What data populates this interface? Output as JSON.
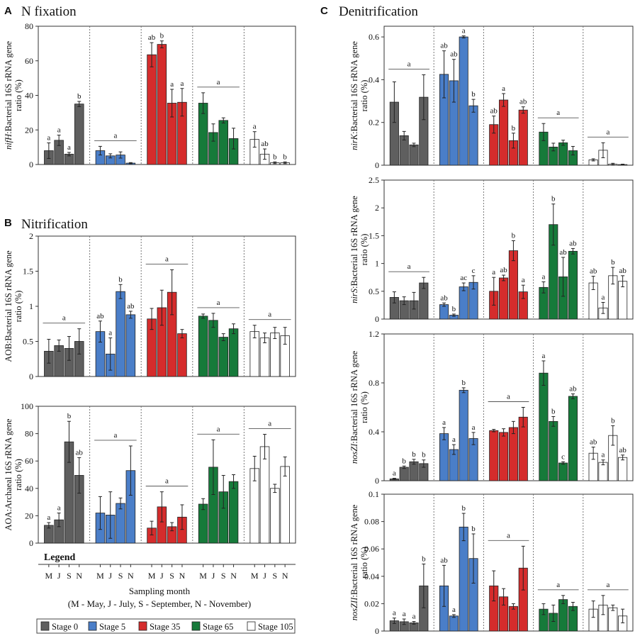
{
  "panels": {
    "A": {
      "letter": "A",
      "title": "N fixation"
    },
    "B": {
      "letter": "B",
      "title": "Nitrification"
    },
    "C": {
      "letter": "C",
      "title": "Denitrification"
    }
  },
  "legend": {
    "title": "Legend",
    "months": [
      "M",
      "J",
      "S",
      "N"
    ],
    "xlabel": "Sampling month",
    "caption": "(M - May, J - July, S - September, N - November)",
    "stages": [
      {
        "name": "Stage 0",
        "color": "#5f5f5f"
      },
      {
        "name": "Stage 5",
        "color": "#4a7ec8"
      },
      {
        "name": "Stage 35",
        "color": "#d52c2c"
      },
      {
        "name": "Stage 65",
        "color": "#167a3a"
      },
      {
        "name": "Stage 105",
        "color": "#ffffff"
      }
    ]
  },
  "chart_data": [
    {
      "id": "nifH",
      "type": "bar",
      "panel": "A",
      "ylabel_italic": "nifH",
      "ylabel_rest": ":Bacterial 16S rRNA gene",
      "ylabel_line2": "ratio (%)",
      "ylim": [
        0,
        80
      ],
      "yticks": [
        "0",
        "20",
        "40",
        "60",
        "80"
      ],
      "series": [
        {
          "name": "Stage 0",
          "values": [
            8,
            14,
            6,
            35
          ],
          "errors": [
            4.5,
            3,
            1,
            1.5
          ],
          "letters": [
            "a",
            "a",
            "a",
            "b"
          ],
          "group_letter": ""
        },
        {
          "name": "Stage 5",
          "values": [
            8,
            5,
            5.5,
            0.8
          ],
          "errors": [
            2.5,
            1.2,
            1.8,
            0.3
          ],
          "letters": [
            "",
            "",
            "",
            ""
          ],
          "group_letter": "a"
        },
        {
          "name": "Stage 35",
          "values": [
            63.5,
            69.5,
            35.5,
            36
          ],
          "errors": [
            7,
            2,
            8,
            8
          ],
          "letters": [
            "ab",
            "b",
            "a",
            "a"
          ],
          "group_letter": ""
        },
        {
          "name": "Stage 65",
          "values": [
            35.5,
            18.5,
            25.5,
            15
          ],
          "errors": [
            6,
            5,
            1.5,
            6
          ],
          "letters": [
            "",
            "",
            "",
            ""
          ],
          "group_letter": "a"
        },
        {
          "name": "Stage 105",
          "values": [
            14.5,
            6,
            1,
            1
          ],
          "errors": [
            4.5,
            3,
            0.5,
            0.5
          ],
          "letters": [
            "a",
            "ab",
            "b",
            "b"
          ],
          "group_letter": ""
        }
      ]
    },
    {
      "id": "AOB",
      "type": "bar",
      "panel": "B",
      "ylabel_italic": "",
      "ylabel_rest": "AOB:Bacterial 16S rRNA gene",
      "ylabel_line2": "ratio (%)",
      "ylim": [
        0,
        2
      ],
      "yticks": [
        "0",
        "0.5",
        "1",
        "1.5",
        "2"
      ],
      "series": [
        {
          "name": "Stage 0",
          "values": [
            0.36,
            0.44,
            0.4,
            0.5
          ],
          "errors": [
            0.17,
            0.08,
            0.17,
            0.18
          ],
          "letters": [
            "",
            "",
            "",
            ""
          ],
          "group_letter": "a"
        },
        {
          "name": "Stage 5",
          "values": [
            0.64,
            0.32,
            1.21,
            0.88
          ],
          "errors": [
            0.15,
            0.23,
            0.1,
            0.05
          ],
          "letters": [
            "ab",
            "a",
            "b",
            "ab"
          ],
          "group_letter": ""
        },
        {
          "name": "Stage 35",
          "values": [
            0.82,
            0.98,
            1.2,
            0.61
          ],
          "errors": [
            0.15,
            0.25,
            0.32,
            0.06
          ],
          "letters": [
            "",
            "",
            "",
            ""
          ],
          "group_letter": "a"
        },
        {
          "name": "Stage 65",
          "values": [
            0.86,
            0.8,
            0.56,
            0.68
          ],
          "errors": [
            0.03,
            0.1,
            0.05,
            0.07
          ],
          "letters": [
            "",
            "",
            "",
            ""
          ],
          "group_letter": "a"
        },
        {
          "name": "Stage 105",
          "values": [
            0.64,
            0.55,
            0.62,
            0.58
          ],
          "errors": [
            0.09,
            0.07,
            0.08,
            0.12
          ],
          "letters": [
            "",
            "",
            "",
            ""
          ],
          "group_letter": "a"
        }
      ]
    },
    {
      "id": "AOA",
      "type": "bar",
      "panel": "B",
      "ylabel_italic": "",
      "ylabel_rest": "AOA:Archaeal 16S rRNA gene",
      "ylabel_line2": "ratio (%)",
      "ylim": [
        0,
        100
      ],
      "yticks": [
        "0",
        "20",
        "40",
        "60",
        "80",
        "100"
      ],
      "series": [
        {
          "name": "Stage 0",
          "values": [
            13,
            17,
            74,
            49.5
          ],
          "errors": [
            2,
            5,
            15,
            13
          ],
          "letters": [
            "a",
            "a",
            "b",
            "ab"
          ],
          "group_letter": ""
        },
        {
          "name": "Stage 5",
          "values": [
            22,
            20.5,
            29,
            53
          ],
          "errors": [
            12,
            17,
            4,
            18
          ],
          "letters": [
            "",
            "",
            "",
            ""
          ],
          "group_letter": "a"
        },
        {
          "name": "Stage 35",
          "values": [
            11,
            26.5,
            12,
            19
          ],
          "errors": [
            5,
            11,
            3,
            9
          ],
          "letters": [
            "",
            "",
            "",
            ""
          ],
          "group_letter": "a"
        },
        {
          "name": "Stage 65",
          "values": [
            28.5,
            55.5,
            37.5,
            45
          ],
          "errors": [
            4,
            20,
            12,
            5
          ],
          "letters": [
            "",
            "",
            "",
            ""
          ],
          "group_letter": "a"
        },
        {
          "name": "Stage 105",
          "values": [
            54.5,
            70.5,
            40,
            56
          ],
          "errors": [
            9,
            9,
            3,
            7
          ],
          "letters": [
            "",
            "",
            "",
            ""
          ],
          "group_letter": "a"
        }
      ]
    },
    {
      "id": "nirK",
      "type": "bar",
      "panel": "C",
      "ylabel_italic": "nirK",
      "ylabel_rest": ":Bacterial 16S rRNA gene",
      "ylabel_line2": "ratio (%)",
      "ylim": [
        0,
        0.65
      ],
      "yticks": [
        "0",
        "0.2",
        "0.4",
        "0.6"
      ],
      "series": [
        {
          "name": "Stage 0",
          "values": [
            0.295,
            0.138,
            0.095,
            0.318
          ],
          "errors": [
            0.095,
            0.02,
            0.008,
            0.105
          ],
          "letters": [
            "",
            "",
            "",
            ""
          ],
          "group_letter": "a"
        },
        {
          "name": "Stage 5",
          "values": [
            0.425,
            0.395,
            0.6,
            0.278
          ],
          "errors": [
            0.11,
            0.1,
            0.005,
            0.03
          ],
          "letters": [
            "ab",
            "ab",
            "a",
            "b"
          ],
          "group_letter": ""
        },
        {
          "name": "Stage 35",
          "values": [
            0.19,
            0.305,
            0.115,
            0.258
          ],
          "errors": [
            0.04,
            0.03,
            0.035,
            0.015
          ],
          "letters": [
            "ab",
            "a",
            "b",
            "ab"
          ],
          "group_letter": ""
        },
        {
          "name": "Stage 65",
          "values": [
            0.155,
            0.085,
            0.105,
            0.068
          ],
          "errors": [
            0.04,
            0.018,
            0.012,
            0.02
          ],
          "letters": [
            "",
            "",
            "",
            ""
          ],
          "group_letter": "a"
        },
        {
          "name": "Stage 105",
          "values": [
            0.025,
            0.07,
            0.005,
            0.003
          ],
          "errors": [
            0.005,
            0.035,
            0.004,
            0.002
          ],
          "letters": [
            "",
            "",
            "",
            ""
          ],
          "group_letter": "a"
        }
      ]
    },
    {
      "id": "nirS",
      "type": "bar",
      "panel": "C",
      "ylabel_italic": "nirS",
      "ylabel_rest": ":Bacterial 16S rRNA gene",
      "ylabel_line2": "ratio (%)",
      "ylim": [
        0,
        2.5
      ],
      "yticks": [
        "0",
        "0.5",
        "1",
        "1.5",
        "2",
        "2.5"
      ],
      "series": [
        {
          "name": "Stage 0",
          "values": [
            0.39,
            0.33,
            0.33,
            0.65
          ],
          "errors": [
            0.1,
            0.07,
            0.15,
            0.1
          ],
          "letters": [
            "",
            "",
            "",
            ""
          ],
          "group_letter": "a"
        },
        {
          "name": "Stage 5",
          "values": [
            0.26,
            0.07,
            0.58,
            0.66
          ],
          "errors": [
            0.03,
            0.02,
            0.07,
            0.12
          ],
          "letters": [
            "ab",
            "b",
            "ac",
            "c"
          ],
          "group_letter": ""
        },
        {
          "name": "Stage 35",
          "values": [
            0.5,
            0.74,
            1.23,
            0.49
          ],
          "errors": [
            0.25,
            0.05,
            0.18,
            0.12
          ],
          "letters": [
            "a",
            "ab",
            "b",
            "a"
          ],
          "group_letter": ""
        },
        {
          "name": "Stage 65",
          "values": [
            0.57,
            1.7,
            0.76,
            1.22
          ],
          "errors": [
            0.1,
            0.37,
            0.35,
            0.05
          ],
          "letters": [
            "a",
            "b",
            "ab",
            "ab"
          ],
          "group_letter": ""
        },
        {
          "name": "Stage 105",
          "values": [
            0.65,
            0.2,
            0.78,
            0.68
          ],
          "errors": [
            0.12,
            0.1,
            0.15,
            0.1
          ],
          "letters": [
            "ab",
            "a",
            "b",
            "ab"
          ],
          "group_letter": ""
        }
      ]
    },
    {
      "id": "nosZI",
      "type": "bar",
      "panel": "C",
      "ylabel_italic": "nosZI",
      "ylabel_rest": ":Bacterial 16S rRNA gene",
      "ylabel_line2": "ratio (%)",
      "ylim": [
        0,
        1.2
      ],
      "yticks": [
        "0",
        "0.4",
        "0.8",
        "1.2"
      ],
      "series": [
        {
          "name": "Stage 0",
          "values": [
            0.015,
            0.11,
            0.155,
            0.14
          ],
          "errors": [
            0.005,
            0.01,
            0.02,
            0.03
          ],
          "letters": [
            "a",
            "b",
            "b",
            "b"
          ],
          "group_letter": ""
        },
        {
          "name": "Stage 5",
          "values": [
            0.385,
            0.255,
            0.74,
            0.345
          ],
          "errors": [
            0.05,
            0.04,
            0.02,
            0.05
          ],
          "letters": [
            "a",
            "a",
            "b",
            "a"
          ],
          "group_letter": ""
        },
        {
          "name": "Stage 35",
          "values": [
            0.41,
            0.395,
            0.435,
            0.52
          ],
          "errors": [
            0.01,
            0.03,
            0.05,
            0.08
          ],
          "letters": [
            "",
            "",
            "",
            ""
          ],
          "group_letter": "a"
        },
        {
          "name": "Stage 65",
          "values": [
            0.88,
            0.485,
            0.145,
            0.69
          ],
          "errors": [
            0.1,
            0.04,
            0.01,
            0.02
          ],
          "letters": [
            "a",
            "b",
            "c",
            "ab"
          ],
          "group_letter": ""
        },
        {
          "name": "Stage 105",
          "values": [
            0.225,
            0.15,
            0.37,
            0.19
          ],
          "errors": [
            0.05,
            0.02,
            0.08,
            0.02
          ],
          "letters": [
            "ab",
            "a",
            "b",
            "ab"
          ],
          "group_letter": ""
        }
      ]
    },
    {
      "id": "nosZII",
      "type": "bar",
      "panel": "C",
      "ylabel_italic": "nosZII",
      "ylabel_rest": ":Bacterial 16S rRNA gene",
      "ylabel_line2": "ratio (%)",
      "ylim": [
        0,
        0.1
      ],
      "yticks": [
        "0",
        "0.02",
        "0.04",
        "0.06",
        "0.08",
        "0.1"
      ],
      "series": [
        {
          "name": "Stage 0",
          "values": [
            0.0075,
            0.0068,
            0.006,
            0.033
          ],
          "errors": [
            0.002,
            0.002,
            0.001,
            0.016
          ],
          "letters": [
            "a",
            "a",
            "a",
            "b"
          ],
          "group_letter": ""
        },
        {
          "name": "Stage 5",
          "values": [
            0.033,
            0.011,
            0.076,
            0.053
          ],
          "errors": [
            0.015,
            0.001,
            0.01,
            0.018
          ],
          "letters": [
            "ab",
            "a",
            "b",
            "b"
          ],
          "group_letter": ""
        },
        {
          "name": "Stage 35",
          "values": [
            0.033,
            0.025,
            0.018,
            0.046
          ],
          "errors": [
            0.011,
            0.006,
            0.002,
            0.016
          ],
          "letters": [
            "",
            "",
            "",
            ""
          ],
          "group_letter": "a"
        },
        {
          "name": "Stage 65",
          "values": [
            0.016,
            0.013,
            0.023,
            0.018
          ],
          "errors": [
            0.004,
            0.006,
            0.003,
            0.003
          ],
          "letters": [
            "",
            "",
            "",
            ""
          ],
          "group_letter": "a"
        },
        {
          "name": "Stage 105",
          "values": [
            0.016,
            0.019,
            0.017,
            0.011
          ],
          "errors": [
            0.006,
            0.007,
            0.002,
            0.005
          ],
          "letters": [
            "",
            "",
            "",
            ""
          ],
          "group_letter": "a"
        }
      ]
    }
  ]
}
